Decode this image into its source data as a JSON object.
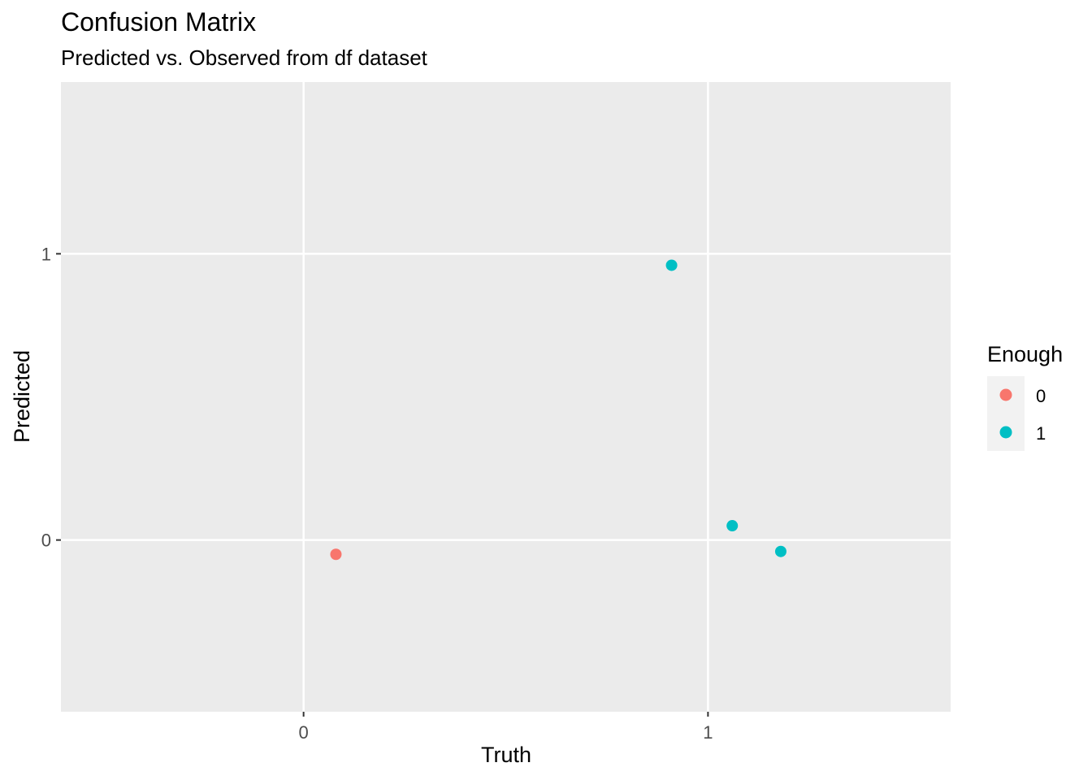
{
  "chart_data": {
    "type": "scatter",
    "title": "Confusion Matrix",
    "subtitle": "Predicted vs. Observed from df dataset",
    "xlabel": "Truth",
    "ylabel": "Predicted",
    "xlim": [
      -0.6,
      1.6
    ],
    "ylim": [
      -0.6,
      1.6
    ],
    "x_ticks": [
      {
        "value": 0,
        "label": "0"
      },
      {
        "value": 1,
        "label": "1"
      }
    ],
    "y_ticks": [
      {
        "value": 0,
        "label": "0"
      },
      {
        "value": 1,
        "label": "1"
      }
    ],
    "grid": true,
    "legend": {
      "title": "Enough",
      "placement": "right",
      "entries": [
        {
          "label": "0",
          "color": "#F8766D"
        },
        {
          "label": "1",
          "color": "#00BFC4"
        }
      ]
    },
    "points": [
      {
        "x": 0.08,
        "y": -0.05,
        "group": "0"
      },
      {
        "x": 0.91,
        "y": 0.96,
        "group": "1"
      },
      {
        "x": 1.06,
        "y": 0.05,
        "group": "1"
      },
      {
        "x": 1.18,
        "y": -0.04,
        "group": "1"
      }
    ],
    "colors": {
      "panel_background": "#EBEBEB",
      "grid_line": "#FFFFFF",
      "tick_mark": "#333333"
    }
  }
}
